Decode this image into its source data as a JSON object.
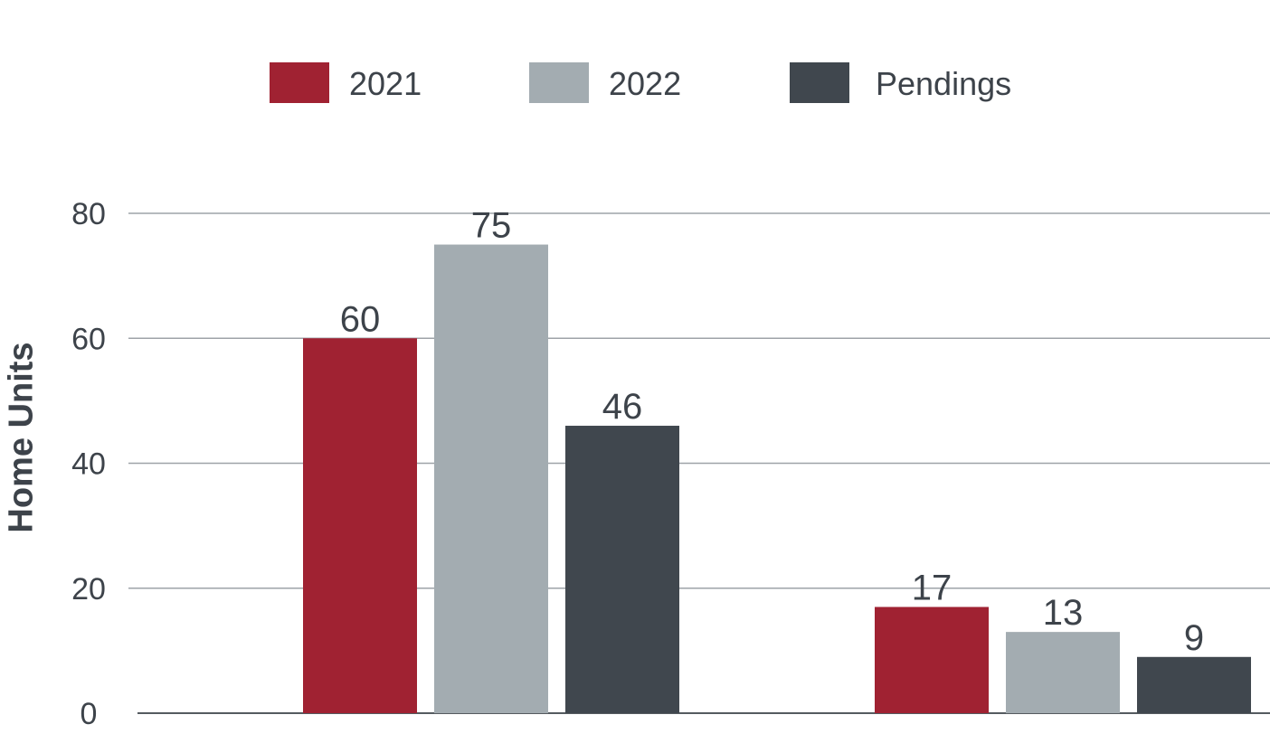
{
  "chart_data": {
    "type": "bar",
    "categories": [
      "",
      ""
    ],
    "series": [
      {
        "name": "2021",
        "color": "#a02232",
        "values": [
          60,
          17
        ]
      },
      {
        "name": "2022",
        "color": "#a3acb1",
        "values": [
          75,
          13
        ]
      },
      {
        "name": "Pendings",
        "color": "#40474e",
        "values": [
          46,
          9
        ]
      }
    ],
    "title": "",
    "xlabel": "",
    "ylabel": "Home Units",
    "ylim": [
      0,
      80
    ],
    "yticks": [
      "0",
      "20",
      "40",
      "60",
      "80"
    ],
    "grid": true,
    "legend_position": "top"
  }
}
